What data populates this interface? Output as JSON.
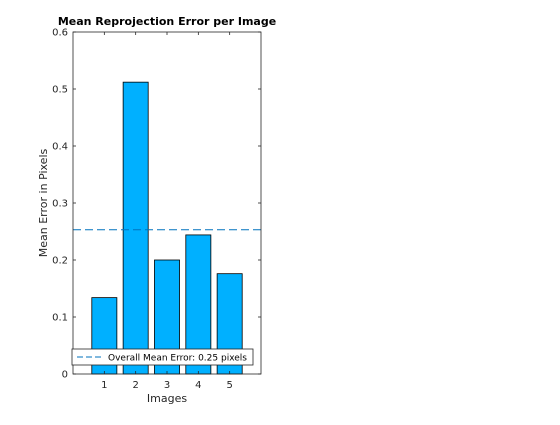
{
  "chart_data": {
    "type": "bar",
    "title": "Mean Reprojection Error per Image",
    "xlabel": "Images",
    "ylabel": "Mean Error in Pixels",
    "categories": [
      "1",
      "2",
      "3",
      "4",
      "5"
    ],
    "values": [
      0.134,
      0.512,
      0.2,
      0.244,
      0.176
    ],
    "xlim": [
      0,
      6
    ],
    "ylim": [
      0,
      0.6
    ],
    "yticks": [
      0,
      0.1,
      0.2,
      0.3,
      0.4,
      0.5,
      0.6
    ],
    "ytick_labels": [
      "0",
      "0.1",
      "0.2",
      "0.3",
      "0.4",
      "0.5",
      "0.6"
    ],
    "bar_color": "#00B0FF",
    "mean_line": {
      "value": 0.253,
      "label": "Overall Mean Error: 0.25 pixels",
      "color": "#0072BD",
      "style": "dashed"
    },
    "legend": {
      "placement": "bottom"
    },
    "grid": false
  }
}
